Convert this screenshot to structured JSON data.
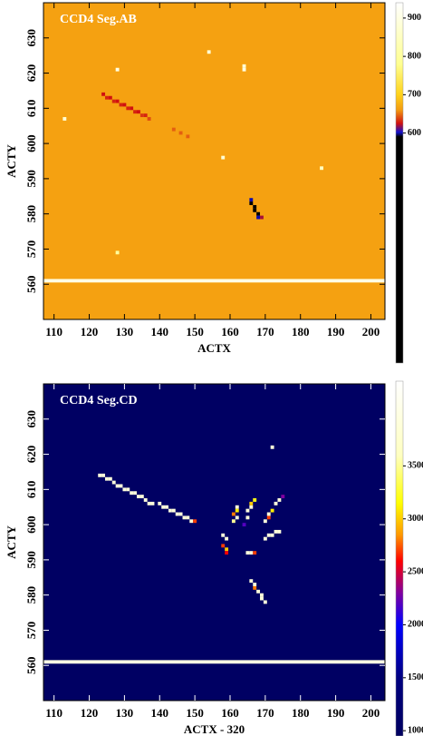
{
  "chart_data": [
    {
      "type": "heatmap",
      "title": "CCD4 Seg.AB",
      "xlabel": "ACTX",
      "ylabel": "ACTY",
      "xlim": [
        107,
        204
      ],
      "ylim": [
        550,
        640
      ],
      "xticks": [
        110,
        120,
        130,
        140,
        150,
        160,
        170,
        180,
        190,
        200
      ],
      "yticks": [
        560,
        570,
        580,
        590,
        600,
        610,
        620,
        630
      ],
      "background": 665,
      "hlines": [
        {
          "y": 561,
          "value": 900
        }
      ],
      "pixels": [
        [
          124,
          614,
          625
        ],
        [
          125,
          613,
          630
        ],
        [
          126,
          613,
          625
        ],
        [
          127,
          612,
          630
        ],
        [
          128,
          612,
          625
        ],
        [
          129,
          611,
          630
        ],
        [
          130,
          611,
          625
        ],
        [
          131,
          610,
          630
        ],
        [
          132,
          610,
          625
        ],
        [
          133,
          609,
          630
        ],
        [
          134,
          609,
          625
        ],
        [
          135,
          608,
          635
        ],
        [
          136,
          608,
          630
        ],
        [
          137,
          607,
          640
        ],
        [
          144,
          604,
          645
        ],
        [
          146,
          603,
          645
        ],
        [
          148,
          602,
          645
        ],
        [
          128,
          621,
          900
        ],
        [
          113,
          607,
          880
        ],
        [
          154,
          626,
          880
        ],
        [
          164,
          621,
          900
        ],
        [
          164,
          622,
          880
        ],
        [
          158,
          596,
          880
        ],
        [
          186,
          593,
          850
        ],
        [
          128,
          569,
          800
        ],
        [
          166,
          584,
          600
        ],
        [
          166,
          583,
          560
        ],
        [
          167,
          582,
          530
        ],
        [
          167,
          581,
          520
        ],
        [
          168,
          580,
          540
        ],
        [
          168,
          579,
          600
        ],
        [
          169,
          579,
          620
        ]
      ],
      "colorbar": {
        "clim": [
          0,
          940
        ],
        "ticks": [
          600,
          700,
          800,
          900
        ],
        "colormap": [
          {
            "value": 0,
            "color": "#000000"
          },
          {
            "value": 590,
            "color": "#000000"
          },
          {
            "value": 602,
            "color": "#1010d0"
          },
          {
            "value": 625,
            "color": "#d01010"
          },
          {
            "value": 660,
            "color": "#f39a10"
          },
          {
            "value": 700,
            "color": "#ffd21a"
          },
          {
            "value": 780,
            "color": "#ffff90"
          },
          {
            "value": 940,
            "color": "#ffffff"
          }
        ]
      }
    },
    {
      "type": "heatmap",
      "title": "CCD4 Seg.CD",
      "xlabel": "ACTX - 320",
      "ylabel": "ACTY",
      "xlim": [
        107,
        204
      ],
      "ylim": [
        550,
        640
      ],
      "xticks": [
        110,
        120,
        130,
        140,
        150,
        160,
        170,
        180,
        190,
        200
      ],
      "yticks": [
        560,
        570,
        580,
        590,
        600,
        610,
        620,
        630
      ],
      "background": 1000,
      "hlines": [
        {
          "y": 561,
          "value": 4000
        }
      ],
      "pixels": [
        [
          123,
          614,
          3900
        ],
        [
          124,
          614,
          3900
        ],
        [
          125,
          613,
          3900
        ],
        [
          126,
          613,
          3900
        ],
        [
          127,
          612,
          3900
        ],
        [
          128,
          611,
          3900
        ],
        [
          129,
          611,
          3900
        ],
        [
          130,
          610,
          3900
        ],
        [
          131,
          610,
          3900
        ],
        [
          132,
          609,
          3900
        ],
        [
          133,
          609,
          3900
        ],
        [
          134,
          608,
          3900
        ],
        [
          135,
          608,
          3900
        ],
        [
          136,
          607,
          3900
        ],
        [
          137,
          606,
          3900
        ],
        [
          138,
          606,
          3900
        ],
        [
          140,
          606,
          3900
        ],
        [
          141,
          605,
          3900
        ],
        [
          142,
          605,
          3900
        ],
        [
          143,
          604,
          3900
        ],
        [
          144,
          604,
          3900
        ],
        [
          145,
          603,
          3900
        ],
        [
          146,
          603,
          3900
        ],
        [
          147,
          602,
          3900
        ],
        [
          148,
          602,
          3900
        ],
        [
          149,
          601,
          3900
        ],
        [
          150,
          601,
          2700
        ],
        [
          158,
          597,
          3900
        ],
        [
          159,
          596,
          3900
        ],
        [
          158,
          594,
          2700
        ],
        [
          159,
          593,
          3000
        ],
        [
          159,
          592,
          2600
        ],
        [
          162,
          605,
          3900
        ],
        [
          162,
          604,
          3100
        ],
        [
          161,
          603,
          2800
        ],
        [
          162,
          602,
          3900
        ],
        [
          161,
          601,
          3500
        ],
        [
          164,
          600,
          2200
        ],
        [
          165,
          602,
          3900
        ],
        [
          165,
          604,
          3900
        ],
        [
          166,
          605,
          3900
        ],
        [
          166,
          606,
          3000
        ],
        [
          167,
          607,
          3200
        ],
        [
          170,
          601,
          3900
        ],
        [
          171,
          602,
          2700
        ],
        [
          171,
          603,
          3900
        ],
        [
          172,
          604,
          3100
        ],
        [
          173,
          606,
          3900
        ],
        [
          174,
          607,
          3900
        ],
        [
          175,
          608,
          2300
        ],
        [
          165,
          592,
          3900
        ],
        [
          166,
          592,
          3900
        ],
        [
          167,
          592,
          2700
        ],
        [
          170,
          596,
          3900
        ],
        [
          171,
          597,
          3900
        ],
        [
          172,
          597,
          3900
        ],
        [
          173,
          598,
          3900
        ],
        [
          174,
          598,
          3900
        ],
        [
          166,
          584,
          3900
        ],
        [
          167,
          583,
          3900
        ],
        [
          167,
          582,
          2800
        ],
        [
          168,
          581,
          3900
        ],
        [
          169,
          580,
          3900
        ],
        [
          169,
          579,
          3900
        ],
        [
          170,
          578,
          3900
        ],
        [
          172,
          622,
          3900
        ]
      ],
      "colorbar": {
        "clim": [
          950,
          4300
        ],
        "ticks": [
          1000,
          1500,
          2000,
          2500,
          3000,
          3500
        ],
        "colormap": [
          {
            "value": 950,
            "color": "#000060"
          },
          {
            "value": 1500,
            "color": "#000080"
          },
          {
            "value": 2000,
            "color": "#0000ff"
          },
          {
            "value": 2300,
            "color": "#8000a0"
          },
          {
            "value": 2600,
            "color": "#ff0000"
          },
          {
            "value": 2850,
            "color": "#ff9900"
          },
          {
            "value": 3150,
            "color": "#ffff00"
          },
          {
            "value": 3600,
            "color": "#ffffc0"
          },
          {
            "value": 4300,
            "color": "#ffffff"
          }
        ]
      }
    }
  ]
}
